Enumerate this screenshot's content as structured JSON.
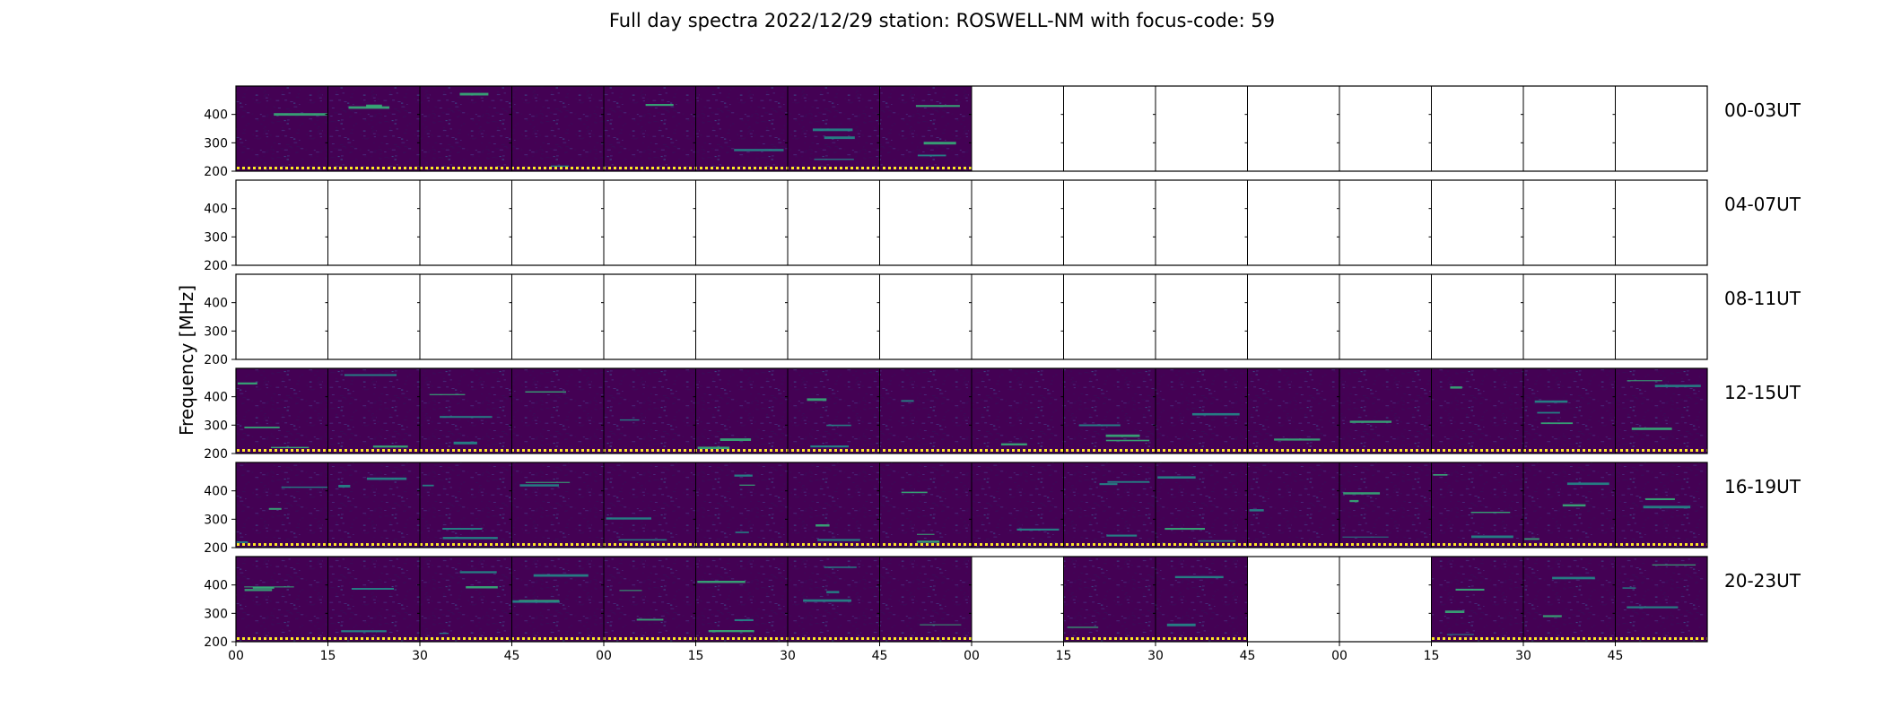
{
  "chart_data": {
    "type": "heatmap",
    "title": "Full day spectra 2022/12/29 station: ROSWELL-NM with focus-code: 59",
    "ylabel": "Frequency [MHz]",
    "xlabel": "",
    "ylim": [
      200,
      500
    ],
    "y_ticks": [
      200,
      300,
      400
    ],
    "x_tick_labels": [
      "00",
      "15",
      "30",
      "45",
      "00",
      "15",
      "30",
      "45",
      "00",
      "15",
      "30",
      "45",
      "00",
      "15",
      "30",
      "45"
    ],
    "colormap": "viridis",
    "colors": {
      "background": "#440154",
      "dark": "#3b0a57",
      "teal": "#21918c",
      "cyan": "#35b779",
      "yellow": "#fde725"
    },
    "rows": [
      {
        "label": "00-03UT",
        "panels": [
          1,
          1,
          1,
          1,
          1,
          1,
          1,
          1,
          0,
          0,
          0,
          0,
          0,
          0,
          0,
          0
        ]
      },
      {
        "label": "04-07UT",
        "panels": [
          0,
          0,
          0,
          0,
          0,
          0,
          0,
          0,
          0,
          0,
          0,
          0,
          0,
          0,
          0,
          0
        ]
      },
      {
        "label": "08-11UT",
        "panels": [
          0,
          0,
          0,
          0,
          0,
          0,
          0,
          0,
          0,
          0,
          0,
          0,
          0,
          0,
          0,
          0
        ]
      },
      {
        "label": "12-15UT",
        "panels": [
          1,
          1,
          1,
          1,
          1,
          1,
          1,
          1,
          1,
          1,
          1,
          1,
          1,
          1,
          1,
          1
        ]
      },
      {
        "label": "16-19UT",
        "panels": [
          1,
          1,
          1,
          1,
          1,
          1,
          1,
          1,
          1,
          1,
          1,
          1,
          1,
          1,
          1,
          1
        ]
      },
      {
        "label": "20-23UT",
        "panels": [
          1,
          1,
          1,
          1,
          1,
          1,
          1,
          1,
          0,
          1,
          1,
          0,
          0,
          1,
          1,
          1
        ]
      }
    ],
    "grid": false
  }
}
